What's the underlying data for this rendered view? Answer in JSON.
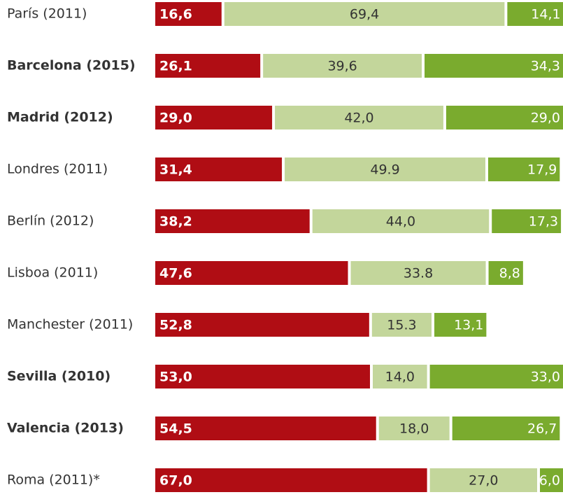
{
  "chart_data": {
    "type": "stacked-bar-horizontal",
    "categories": [
      "París (2011)",
      "Barcelona (2015)",
      "Madrid (2012)",
      "Londres (2011)",
      "Berlín (2012)",
      "Lisboa (2011)",
      "Manchester (2011)",
      "Sevilla (2010)",
      "Valencia (2013)",
      "Roma (2011)*"
    ],
    "bold": [
      false,
      true,
      true,
      false,
      false,
      false,
      false,
      true,
      true,
      false
    ],
    "xlim": [
      0,
      100
    ],
    "series": [
      {
        "color": "#b00d14",
        "values": [
          16.6,
          26.1,
          29.0,
          31.4,
          38.2,
          47.6,
          52.8,
          53.0,
          54.5,
          67.0
        ],
        "value_labels": [
          "16,6",
          "26,1",
          "29,0",
          "31,4",
          "38,2",
          "47,6",
          "52,8",
          "53,0",
          "54,5",
          "67,0"
        ]
      },
      {
        "color": "#c3d69b",
        "values": [
          69.4,
          39.6,
          42.0,
          49.9,
          44.0,
          33.8,
          15.3,
          14.0,
          18.0,
          27.0
        ],
        "value_labels": [
          "69,4",
          "39,6",
          "42,0",
          "49.9",
          "44,0",
          "33.8",
          "15.3",
          "14,0",
          "18,0",
          "27,0"
        ]
      },
      {
        "color": "#7aab2e",
        "values": [
          14.1,
          34.3,
          29.0,
          17.9,
          17.3,
          8.8,
          13.1,
          33.0,
          26.7,
          6.0
        ],
        "value_labels": [
          "14,1",
          "34,3",
          "29,0",
          "17,9",
          "17,3",
          "8,8",
          "13,1",
          "33,0",
          "26,7",
          "6,0"
        ]
      }
    ]
  }
}
